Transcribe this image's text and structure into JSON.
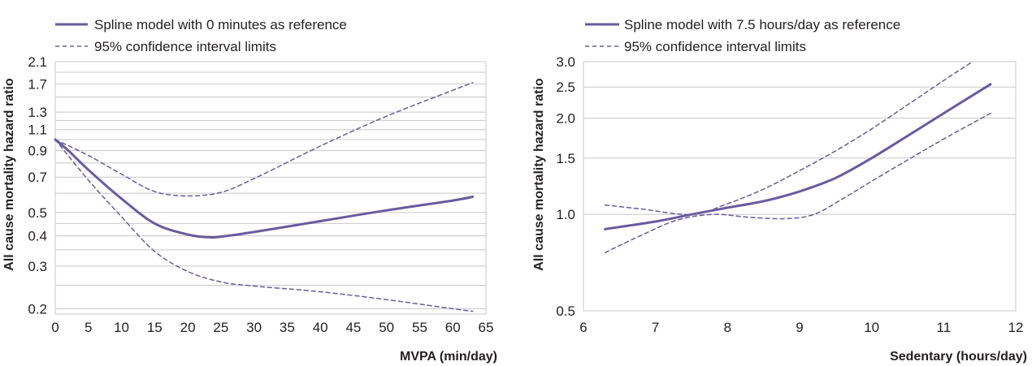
{
  "colors": {
    "series": "#6a5b9e",
    "grid": "#c8c8c8",
    "text": "#231f20"
  },
  "chart_data": [
    {
      "type": "line",
      "xlabel": "MVPA (min/day)",
      "ylabel": "All cause mortality hazard ratio",
      "xlim": [
        0,
        65
      ],
      "ylim": [
        0.19,
        2.1
      ],
      "yscale": "log",
      "grid": "horizontal",
      "legend_position": "top-left",
      "x_ticks": [
        "0",
        "5",
        "10",
        "15",
        "20",
        "25",
        "30",
        "35",
        "40",
        "45",
        "50",
        "55",
        "60",
        "65"
      ],
      "y_ticks": [
        "0.2",
        "0.3",
        "0.4",
        "0.5",
        "0.7",
        "0.9",
        "1.1",
        "1.3",
        "1.7",
        "2.1"
      ],
      "y_gridlines": [
        0.2,
        0.25,
        0.3,
        0.35,
        0.4,
        0.45,
        0.5,
        0.6,
        0.7,
        0.8,
        0.9,
        1.0,
        1.1,
        1.2,
        1.3,
        1.5,
        1.7,
        1.9,
        2.1
      ],
      "series": [
        {
          "name": "Spline model with 0 minutes as reference",
          "style": "solid",
          "x": [
            0,
            2,
            5,
            10,
            15,
            20,
            23,
            25,
            30,
            40,
            50,
            60,
            63
          ],
          "y": [
            1.0,
            0.9,
            0.75,
            0.57,
            0.45,
            0.405,
            0.395,
            0.397,
            0.415,
            0.46,
            0.51,
            0.56,
            0.58
          ]
        },
        {
          "name": "95% confidence interval limits",
          "style": "dashed",
          "x": [
            0,
            5,
            10,
            15,
            20,
            25,
            30,
            40,
            50,
            60,
            63
          ],
          "y": [
            1.0,
            0.86,
            0.72,
            0.61,
            0.585,
            0.605,
            0.69,
            0.94,
            1.25,
            1.6,
            1.72
          ]
        },
        {
          "name": "",
          "style": "dashed",
          "x": [
            0,
            5,
            10,
            15,
            20,
            25,
            30,
            40,
            50,
            60,
            63
          ],
          "y": [
            1.0,
            0.68,
            0.48,
            0.345,
            0.285,
            0.258,
            0.248,
            0.235,
            0.218,
            0.2,
            0.195
          ]
        }
      ]
    },
    {
      "type": "line",
      "xlabel": "Sedentary (hours/day)",
      "ylabel": "All cause mortality hazard ratio",
      "xlim": [
        6,
        12
      ],
      "ylim": [
        0.5,
        3.0
      ],
      "yscale": "log",
      "grid": "horizontal",
      "legend_position": "top-left",
      "x_ticks": [
        "6",
        "7",
        "8",
        "9",
        "10",
        "11",
        "12"
      ],
      "y_ticks": [
        "0.5",
        "1.0",
        "1.5",
        "2.0",
        "2.5",
        "3.0"
      ],
      "y_gridlines": [
        0.5,
        1.0,
        1.5,
        2.0,
        2.5,
        3.0
      ],
      "series": [
        {
          "name": "Spline model with 7.5 hours/day as reference",
          "style": "solid",
          "x": [
            6.3,
            7.0,
            7.5,
            8.0,
            8.5,
            9.0,
            9.5,
            10.0,
            10.5,
            11.0,
            11.65
          ],
          "y": [
            0.9,
            0.95,
            1.0,
            1.05,
            1.1,
            1.18,
            1.3,
            1.5,
            1.76,
            2.07,
            2.55
          ]
        },
        {
          "name": "95% confidence interval limits",
          "style": "dashed",
          "x": [
            6.3,
            6.8,
            7.5,
            8.0,
            8.5,
            9.0,
            9.5,
            10.0,
            10.5,
            11.0,
            11.4
          ],
          "y": [
            1.07,
            1.04,
            1.0,
            1.08,
            1.2,
            1.37,
            1.58,
            1.85,
            2.2,
            2.62,
            3.0
          ]
        },
        {
          "name": "",
          "style": "dashed",
          "x": [
            6.3,
            6.8,
            7.3,
            7.8,
            8.3,
            8.8,
            9.2,
            9.6,
            10.0,
            10.5,
            11.0,
            11.65
          ],
          "y": [
            0.76,
            0.86,
            0.96,
            1.0,
            0.98,
            0.97,
            1.0,
            1.12,
            1.27,
            1.48,
            1.72,
            2.07
          ]
        }
      ]
    }
  ]
}
